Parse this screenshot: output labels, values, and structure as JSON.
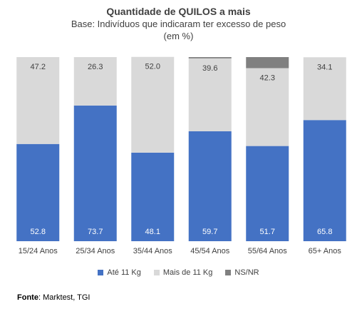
{
  "chart_data": {
    "type": "bar",
    "stacked": true,
    "title": "Quantidade de QUILOS a mais",
    "subtitle_lines": [
      "Base: Indivíduos que indicaram ter excesso de peso",
      "(em %)"
    ],
    "categories": [
      "15/24 Anos",
      "25/34 Anos",
      "35/44 Anos",
      "45/54 Anos",
      "55/64 Anos",
      "65+ Anos"
    ],
    "series": [
      {
        "name": "Até 11 Kg",
        "color": "#4472c4",
        "values": [
          52.8,
          73.7,
          48.1,
          59.7,
          51.7,
          65.8
        ],
        "labels": [
          "52.8",
          "73.7",
          "48.1",
          "59.7",
          "51.7",
          "65.8"
        ]
      },
      {
        "name": "Mais de 11 Kg",
        "color": "#d9d9d9",
        "values": [
          47.2,
          26.3,
          52.0,
          39.6,
          42.3,
          34.1
        ],
        "labels": [
          "47.2",
          "26.3",
          "52.0",
          "39.6",
          "42.3",
          "34.1"
        ]
      },
      {
        "name": "NS/NR",
        "color": "#808080",
        "values": [
          0,
          0,
          0,
          0.7,
          6.0,
          0
        ]
      }
    ],
    "ylim": [
      0,
      100
    ],
    "grid": false,
    "legend_position": "bottom"
  },
  "source": {
    "label": "Fonte",
    "text": ": Marktest, TGI"
  }
}
